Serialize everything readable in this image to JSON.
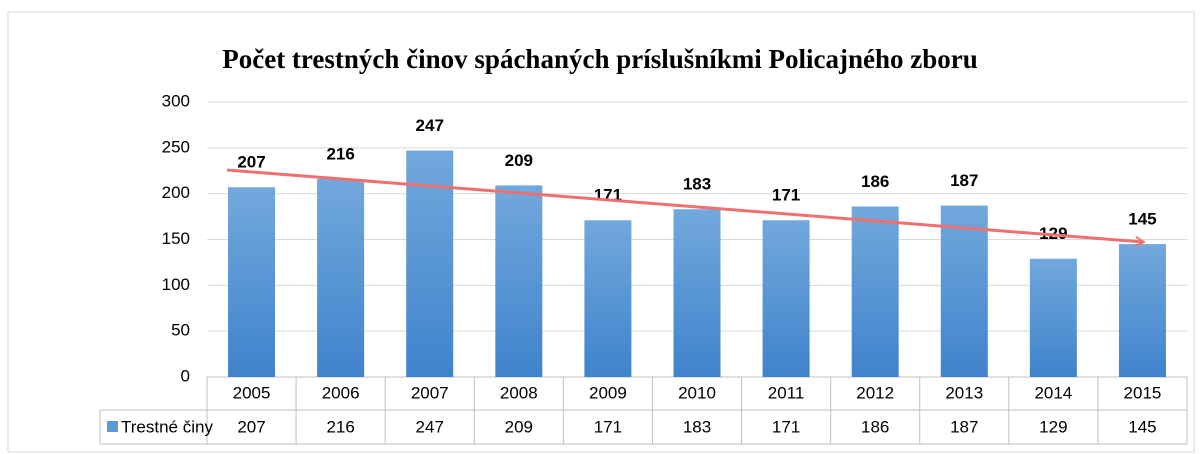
{
  "chart_data": {
    "type": "bar",
    "title": "Počet trestných činov spáchaných príslušníkmi Policajného zboru",
    "categories": [
      "2005",
      "2006",
      "2007",
      "2008",
      "2009",
      "2010",
      "2011",
      "2012",
      "2013",
      "2014",
      "2015"
    ],
    "series": [
      {
        "name": "Trestné činy",
        "color": "#5b9bd5",
        "values": [
          207,
          216,
          247,
          209,
          171,
          183,
          171,
          186,
          187,
          129,
          145
        ]
      }
    ],
    "ylim": [
      0,
      300
    ],
    "yticks": [
      0,
      50,
      100,
      150,
      200,
      250,
      300
    ],
    "grid": true,
    "data_labels": true,
    "data_table": true
  }
}
